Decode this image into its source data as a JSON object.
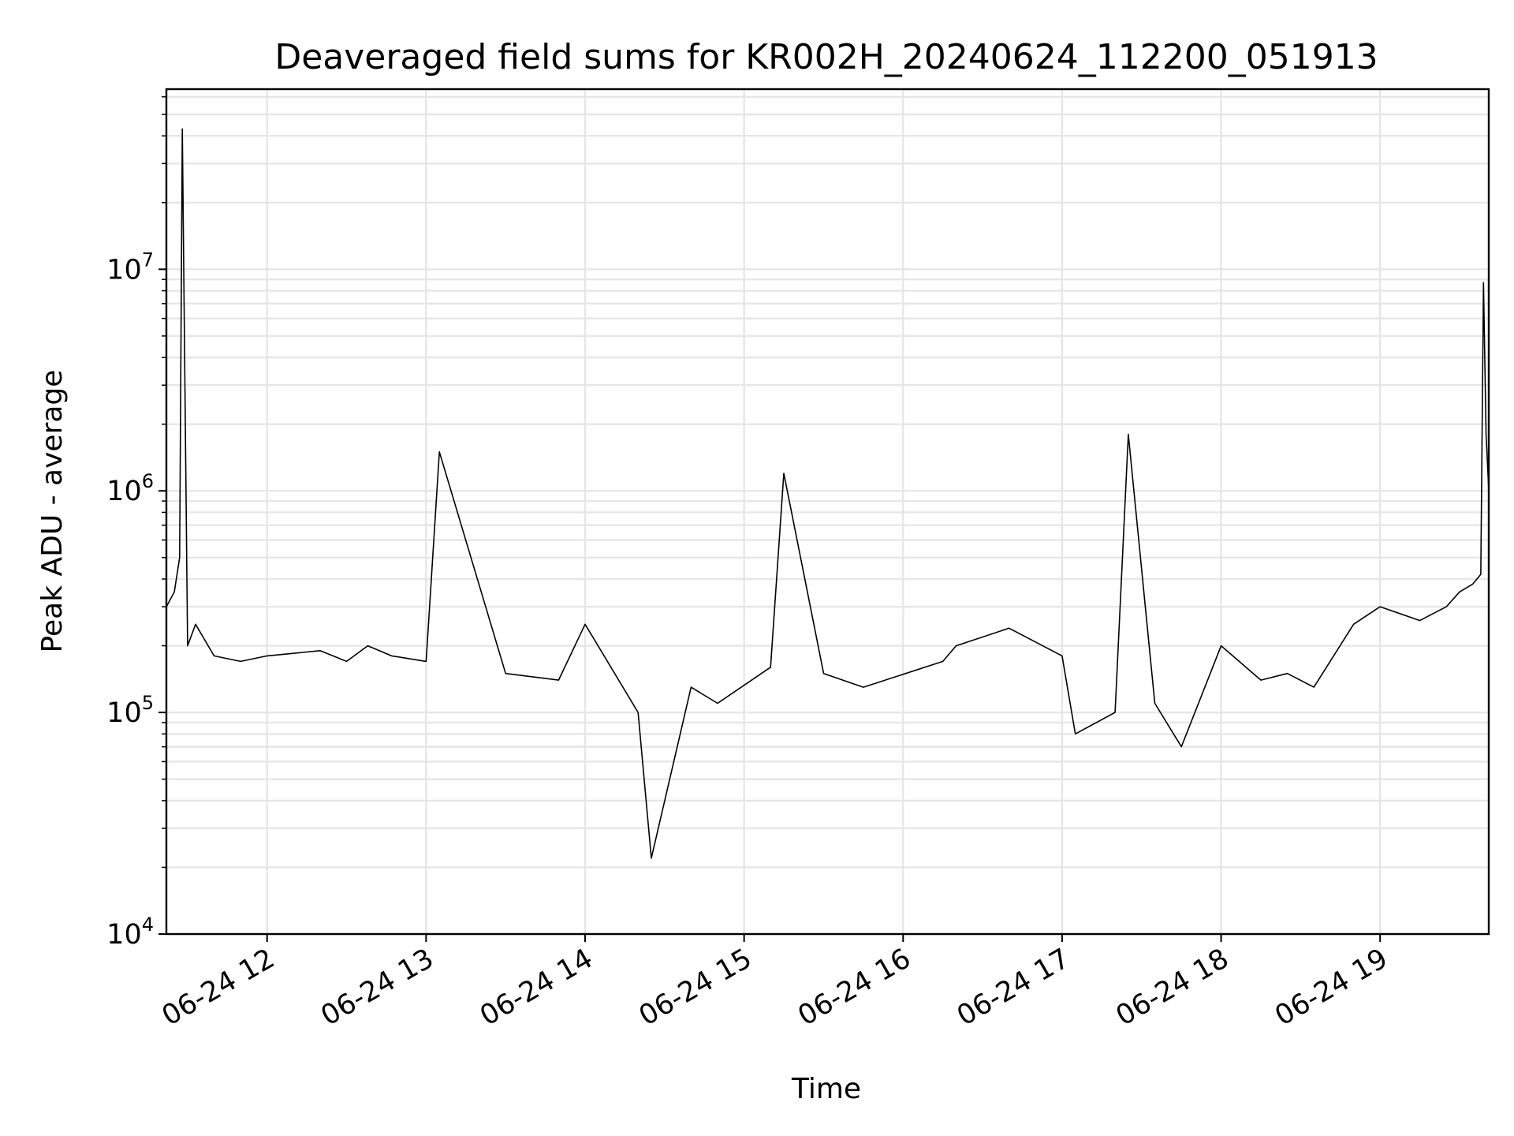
{
  "chart_data": {
    "type": "line",
    "title": "Deaveraged field sums for KR002H_20240624_112200_051913",
    "xlabel": "Time",
    "ylabel": "Peak ADU - average",
    "x_ticks": [
      "06-24 12",
      "06-24 13",
      "06-24 14",
      "06-24 15",
      "06-24 16",
      "06-24 17",
      "06-24 18",
      "06-24 19"
    ],
    "y_ticks": [
      {
        "value": 10000,
        "base": "10",
        "exp": "4"
      },
      {
        "value": 100000,
        "base": "10",
        "exp": "5"
      },
      {
        "value": 1000000,
        "base": "10",
        "exp": "6"
      },
      {
        "value": 10000000,
        "base": "10",
        "exp": "7"
      }
    ],
    "xlim": [
      "2024-06-24 11:22",
      "2024-06-24 19:41"
    ],
    "ylim": [
      10000,
      65000000
    ],
    "yscale": "log",
    "grid": true,
    "line_color": "#000000",
    "grid_color": "#e6e6e6",
    "series": [
      {
        "x": [
          "2024-06-24 11:22",
          "2024-06-24 11:25",
          "2024-06-24 11:27",
          "2024-06-24 11:28",
          "2024-06-24 11:30",
          "2024-06-24 11:33",
          "2024-06-24 11:40",
          "2024-06-24 11:50",
          "2024-06-24 12:00",
          "2024-06-24 12:20",
          "2024-06-24 12:30",
          "2024-06-24 12:38",
          "2024-06-24 12:47",
          "2024-06-24 13:00",
          "2024-06-24 13:05",
          "2024-06-24 13:30",
          "2024-06-24 13:50",
          "2024-06-24 14:00",
          "2024-06-24 14:20",
          "2024-06-24 14:25",
          "2024-06-24 14:40",
          "2024-06-24 14:50",
          "2024-06-24 15:10",
          "2024-06-24 15:15",
          "2024-06-24 15:30",
          "2024-06-24 15:45",
          "2024-06-24 16:15",
          "2024-06-24 16:20",
          "2024-06-24 16:40",
          "2024-06-24 17:00",
          "2024-06-24 17:05",
          "2024-06-24 17:20",
          "2024-06-24 17:25",
          "2024-06-24 17:35",
          "2024-06-24 17:45",
          "2024-06-24 18:00",
          "2024-06-24 18:15",
          "2024-06-24 18:25",
          "2024-06-24 18:35",
          "2024-06-24 18:50",
          "2024-06-24 19:00",
          "2024-06-24 19:15",
          "2024-06-24 19:25",
          "2024-06-24 19:30",
          "2024-06-24 19:35",
          "2024-06-24 19:38",
          "2024-06-24 19:39",
          "2024-06-24 19:40",
          "2024-06-24 19:41"
        ],
        "y": [
          300000,
          350000,
          500000,
          43000000,
          200000,
          250000,
          180000,
          170000,
          180000,
          190000,
          170000,
          200000,
          180000,
          170000,
          1500000,
          150000,
          140000,
          250000,
          100000,
          22000,
          130000,
          110000,
          160000,
          1200000,
          150000,
          130000,
          170000,
          200000,
          240000,
          180000,
          80000,
          100000,
          1800000,
          110000,
          70000,
          200000,
          140000,
          150000,
          130000,
          250000,
          300000,
          260000,
          300000,
          350000,
          380000,
          420000,
          8700000,
          1800000,
          1000000
        ]
      }
    ]
  }
}
